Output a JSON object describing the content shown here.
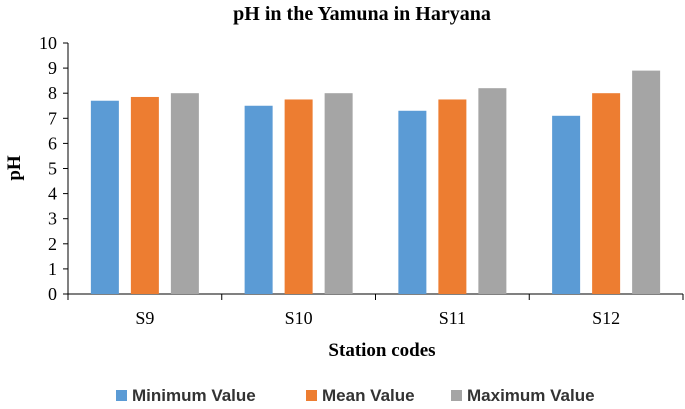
{
  "chart_data": {
    "type": "bar",
    "title": "pH in the Yamuna in Haryana",
    "xlabel": "Station codes",
    "ylabel": "pH",
    "ylim": [
      0,
      10
    ],
    "yticks": [
      "0",
      "1",
      "2",
      "3",
      "4",
      "5",
      "6",
      "7",
      "8",
      "9",
      "10"
    ],
    "grid": false,
    "legend_position": "bottom",
    "categories": [
      "S9",
      "S10",
      "S11",
      "S12"
    ],
    "series": [
      {
        "name": "Minimum Value",
        "color": "#5b9bd5",
        "values": [
          7.7,
          7.5,
          7.3,
          7.1
        ]
      },
      {
        "name": "Mean Value",
        "color": "#ed7d31",
        "values": [
          7.85,
          7.75,
          7.75,
          8.0
        ]
      },
      {
        "name": "Maximum Value",
        "color": "#a5a5a5",
        "values": [
          8.0,
          8.0,
          8.2,
          8.9
        ]
      }
    ]
  }
}
